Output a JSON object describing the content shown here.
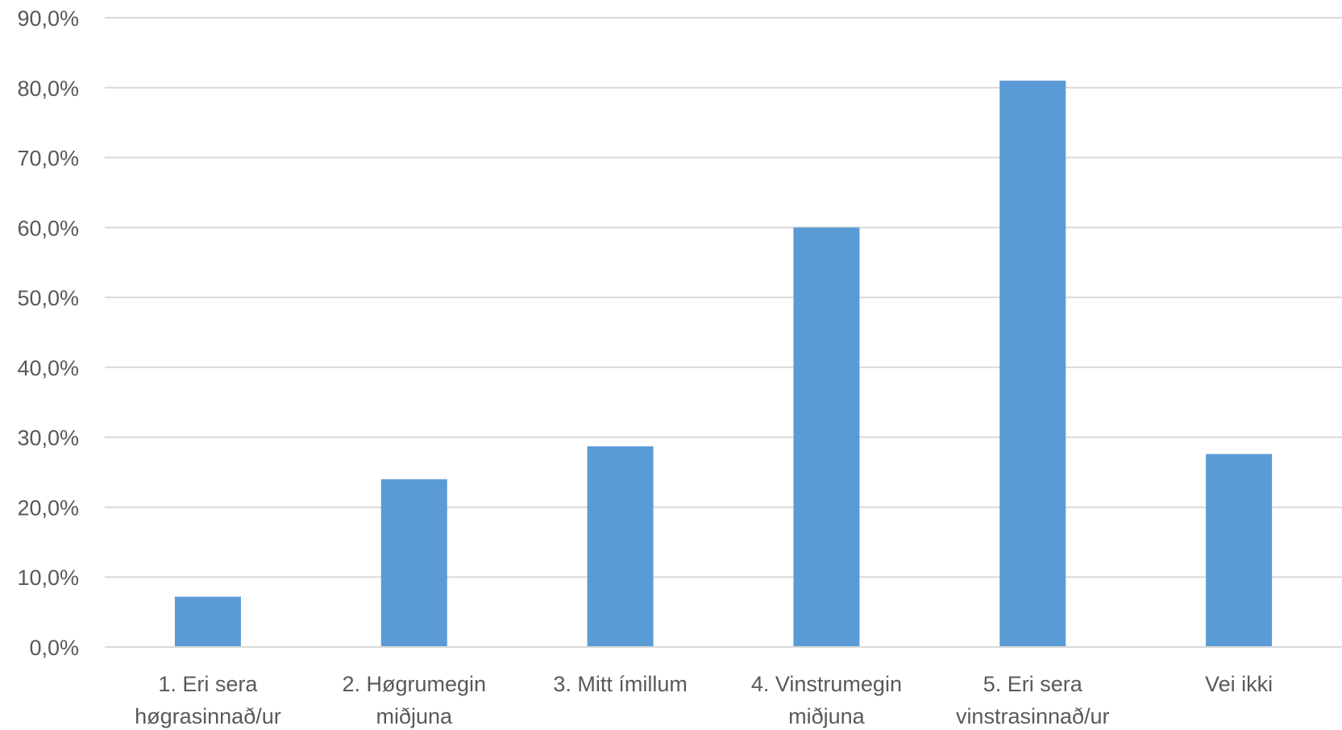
{
  "chart_data": {
    "type": "bar",
    "categories": [
      [
        "1. Eri sera",
        "høgrasinnað/ur"
      ],
      [
        "2. Høgrumegin",
        "miðjuna"
      ],
      [
        "3. Mitt ímillum"
      ],
      [
        "4. Vinstrumegin",
        "miðjuna"
      ],
      [
        "5. Eri sera",
        "vinstrasinnað/ur"
      ],
      [
        "Vei ikki"
      ]
    ],
    "values": [
      7.2,
      24.0,
      28.7,
      60.0,
      81.0,
      27.6
    ],
    "ylim": [
      0,
      90
    ],
    "yticks": [
      0,
      10,
      20,
      30,
      40,
      50,
      60,
      70,
      80,
      90
    ],
    "ytick_labels": [
      "0,0%",
      "10,0%",
      "20,0%",
      "30,0%",
      "40,0%",
      "50,0%",
      "60,0%",
      "70,0%",
      "80,0%",
      "90,0%"
    ],
    "grid": true,
    "legend": "none",
    "bar_color": "#5b9bd5"
  }
}
